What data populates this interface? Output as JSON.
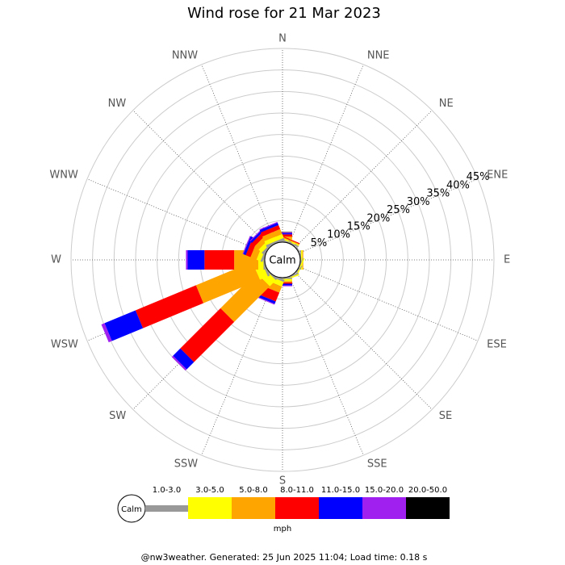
{
  "chart_data": {
    "type": "windrose",
    "title": "Wind rose for 21 Mar 2023",
    "center_label": "Calm",
    "legend_calm_label": "Calm",
    "unit_label": "mph",
    "footer": "@nw3weather. Generated: 25 Jun 2025 11:04; Load time: 0.18 s",
    "categories": [
      "N",
      "NNE",
      "NE",
      "ENE",
      "E",
      "ESE",
      "SE",
      "SSE",
      "S",
      "SSW",
      "SW",
      "WSW",
      "W",
      "WNW",
      "NW",
      "NNW"
    ],
    "ylim": [
      0,
      45
    ],
    "yticks": [
      {
        "value": 5,
        "label": "5%"
      },
      {
        "value": 10,
        "label": "10%"
      },
      {
        "value": 15,
        "label": "15%"
      },
      {
        "value": 20,
        "label": "20%"
      },
      {
        "value": 25,
        "label": "25%"
      },
      {
        "value": 30,
        "label": "30%"
      },
      {
        "value": 35,
        "label": "35%"
      },
      {
        "value": 40,
        "label": "40%"
      },
      {
        "value": 45,
        "label": "45%"
      }
    ],
    "series": [
      {
        "name": "1.0-3.0",
        "color": "#999999",
        "values": [
          0.3,
          0.3,
          0.2,
          0.2,
          0.2,
          0.2,
          0.2,
          0.3,
          0.3,
          0.5,
          0.3,
          0.5,
          0.3,
          0.5,
          0.5,
          0.5
        ]
      },
      {
        "name": "3.0-5.0",
        "color": "#ffff00",
        "values": [
          0.5,
          0.3,
          0,
          0,
          0.3,
          0.3,
          0,
          0.3,
          0.5,
          1.2,
          2,
          2,
          1.2,
          1,
          1,
          1
        ]
      },
      {
        "name": "5.0-8.0",
        "color": "#ffa500",
        "values": [
          0.5,
          0.2,
          0,
          0,
          0.2,
          0,
          0,
          0,
          0.3,
          1.5,
          11.7,
          14.2,
          5.6,
          1.5,
          1.2,
          1.2
        ]
      },
      {
        "name": "8.0-11.0",
        "color": "#ff0000",
        "values": [
          0.5,
          0.2,
          0,
          0,
          0,
          0,
          0,
          0,
          0.3,
          2.2,
          13.2,
          15.2,
          6.9,
          1.2,
          1,
          1
        ]
      },
      {
        "name": "11.0-15.0",
        "color": "#0000ff",
        "values": [
          0.3,
          0,
          0,
          0,
          0,
          0,
          0,
          0,
          0.4,
          0.6,
          2.4,
          7.8,
          3.9,
          0.6,
          0.5,
          0.6
        ]
      },
      {
        "name": "15.0-20.0",
        "color": "#a020f0",
        "values": [
          0.2,
          0,
          0,
          0,
          0,
          0,
          0,
          0,
          0.2,
          0.2,
          0.4,
          0.8,
          0.4,
          0.2,
          0.2,
          0.2
        ]
      },
      {
        "name": "20.0-50.0",
        "color": "#000000",
        "values": [
          0.1,
          0,
          0,
          0,
          0,
          0,
          0,
          0,
          0,
          0,
          0,
          0,
          0,
          0,
          0,
          0
        ]
      }
    ]
  }
}
